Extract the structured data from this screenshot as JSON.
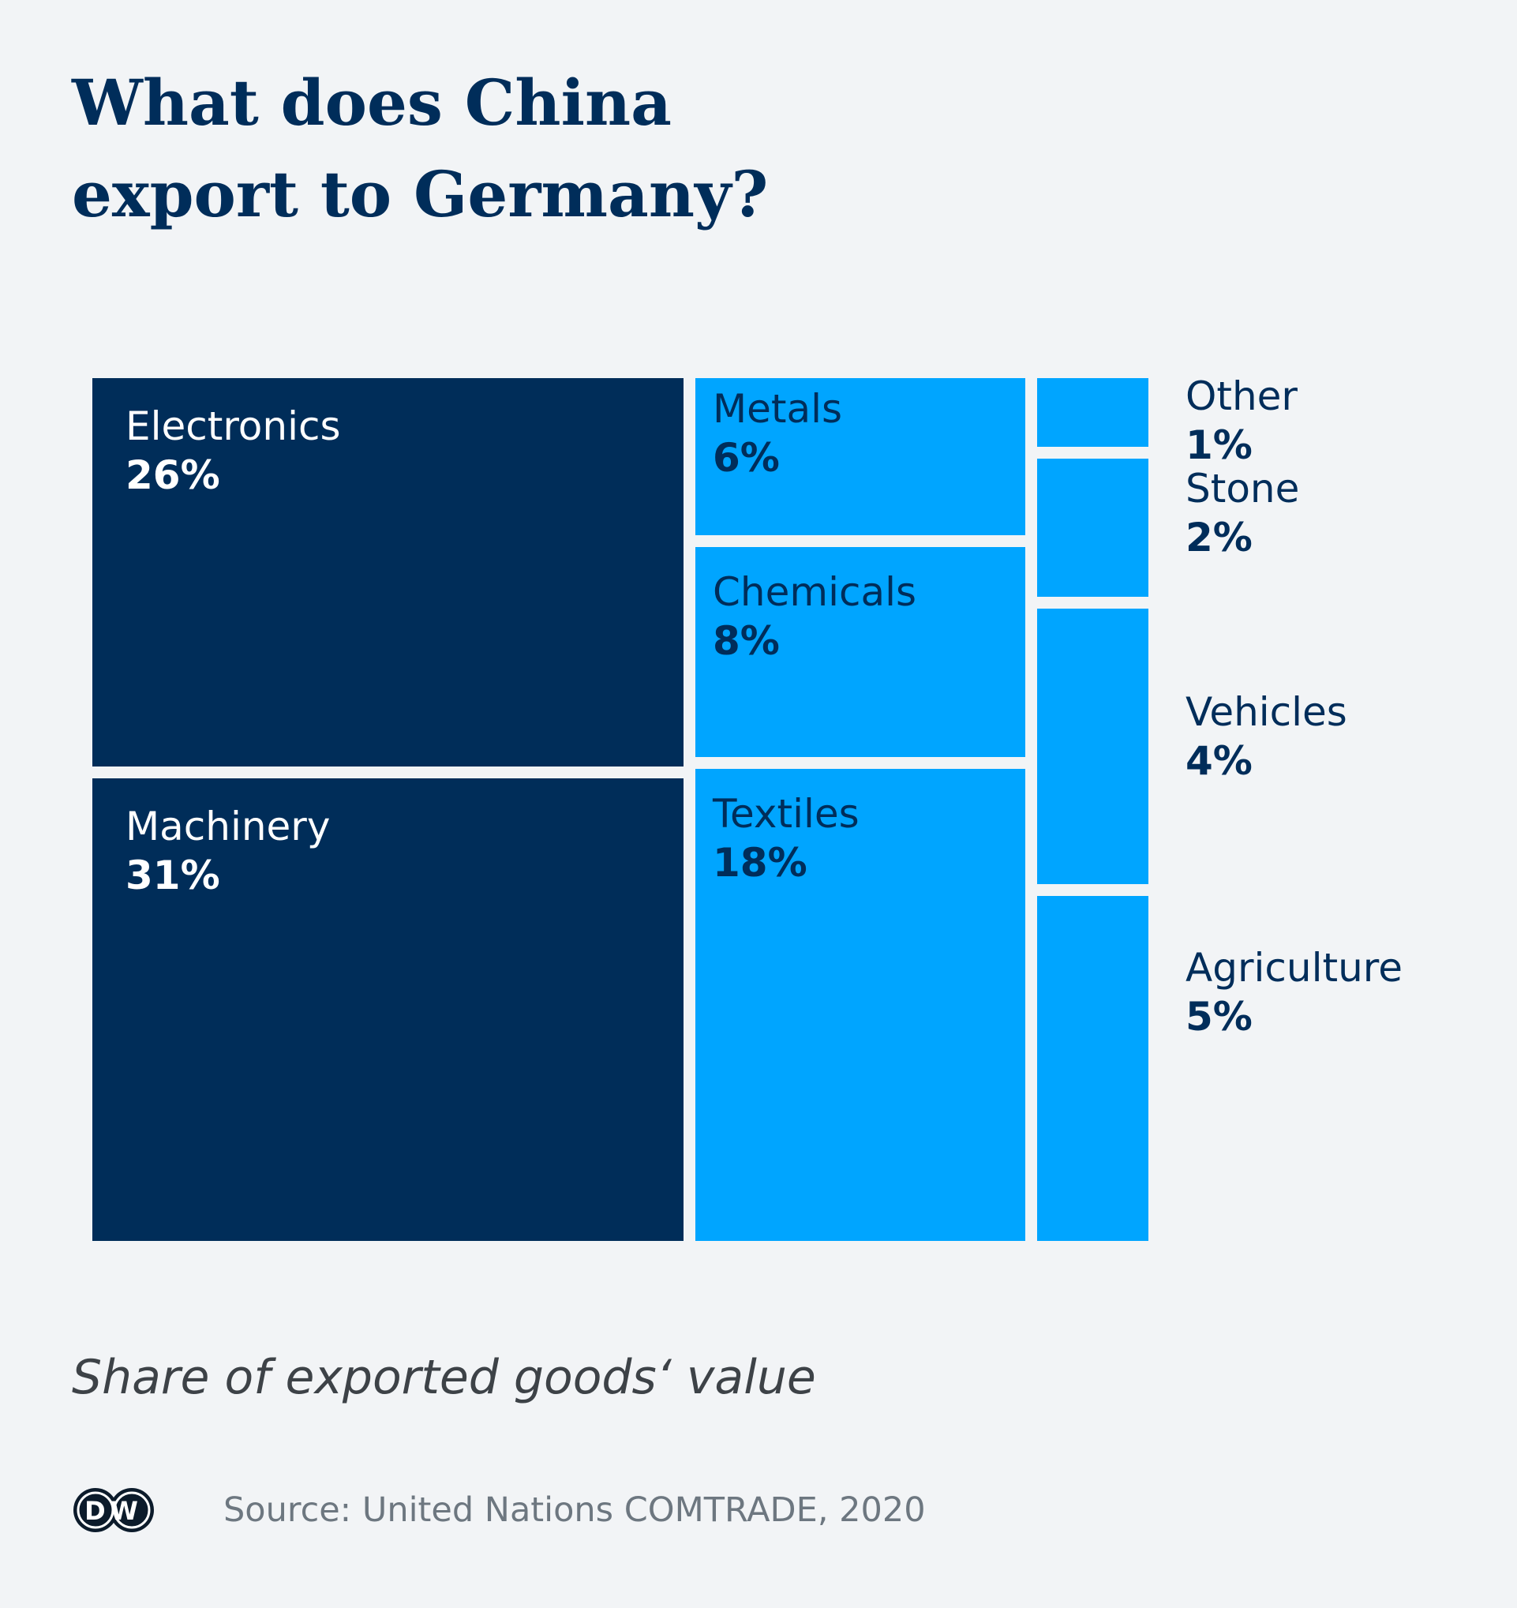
{
  "title_line1": "What does China",
  "title_line2": "export to Germany?",
  "subtitle": "Share of exported goods‘ value",
  "source": "Source: United Nations COMTRADE, 2020",
  "logo_text": "DW",
  "colors": {
    "background": "#f2f4f6",
    "title": "#002d5a",
    "dark_tile": "#002d59",
    "light_tile": "#00a5ff",
    "dark_tile_text": "#ffffff",
    "light_tile_text": "#002d5a",
    "subtitle": "#3d4247",
    "source": "#6d7780"
  },
  "chart_data": {
    "type": "treemap",
    "unit": "%",
    "items": [
      {
        "category": "Electronics",
        "value": 26,
        "label": "26%",
        "group": "dark"
      },
      {
        "category": "Machinery",
        "value": 31,
        "label": "31%",
        "group": "dark"
      },
      {
        "category": "Metals",
        "value": 6,
        "label": "6%",
        "group": "light"
      },
      {
        "category": "Chemicals",
        "value": 8,
        "label": "8%",
        "group": "light"
      },
      {
        "category": "Textiles",
        "value": 18,
        "label": "18%",
        "group": "light"
      },
      {
        "category": "Other",
        "value": 1,
        "label": "1%",
        "group": "light"
      },
      {
        "category": "Stone",
        "value": 2,
        "label": "2%",
        "group": "light"
      },
      {
        "category": "Vehicles",
        "value": 4,
        "label": "4%",
        "group": "light"
      },
      {
        "category": "Agriculture",
        "value": 5,
        "label": "5%",
        "group": "light"
      }
    ]
  }
}
